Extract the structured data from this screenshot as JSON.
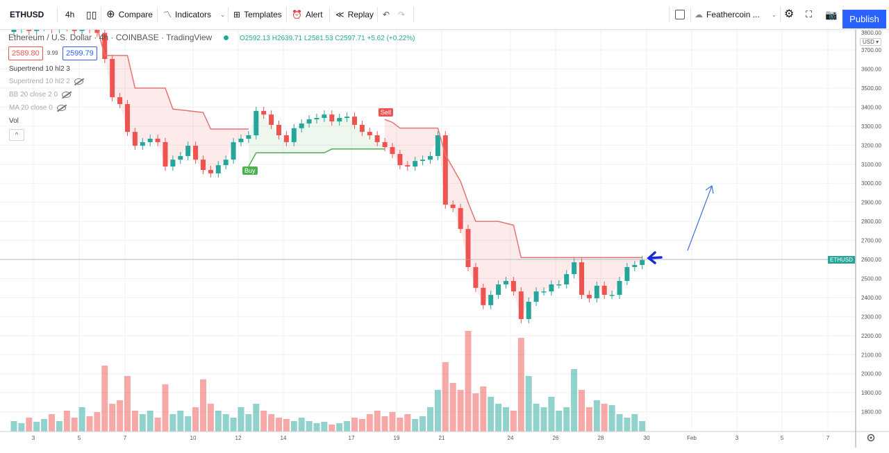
{
  "toolbar": {
    "symbol": "ETHUSD",
    "interval": "4h",
    "compare": "Compare",
    "indicators": "Indicators",
    "templates": "Templates",
    "alert": "Alert",
    "replay": "Replay",
    "layout_name": "Feathercoin ...",
    "publish": "Publish"
  },
  "legend": {
    "title": "Ethereum / U.S. Dollar · 4h · COINBASE · TradingView",
    "ohlc": "O2592.13 H2639.71 L2581.53 C2597.71 +5.62 (+0.22%)",
    "bid": "2589.80",
    "spread": "9.99",
    "ask": "2599.79",
    "indicators": [
      {
        "label": "Supertrend 10 hl2 3",
        "hidden": false
      },
      {
        "label": "Supertrend 10 hl2 2",
        "hidden": true
      },
      {
        "label": "BB 20 close 2 0",
        "hidden": true
      },
      {
        "label": "MA 20 close 0",
        "hidden": true
      },
      {
        "label": "Vol",
        "hidden": false
      }
    ],
    "collapse": "^"
  },
  "signals": {
    "buy": "Buy",
    "sell": "Sell"
  },
  "price_axis": {
    "currency": "USD ▾",
    "ticks": [
      "3800.00",
      "3700.00",
      "3600.00",
      "3500.00",
      "3400.00",
      "3300.00",
      "3200.00",
      "3100.00",
      "3000.00",
      "2900.00",
      "2800.00",
      "2700.00",
      "2600.00",
      "2500.00",
      "2400.00",
      "2300.00",
      "2200.00",
      "2100.00",
      "2000.00",
      "1900.00",
      "1800.00"
    ],
    "last_label": "ETHUSD"
  },
  "time_axis": {
    "ticks": [
      "3",
      "5",
      "7",
      "10",
      "12",
      "14",
      "17",
      "19",
      "21",
      "24",
      "26",
      "28",
      "30",
      "Feb",
      "3",
      "5",
      "7"
    ]
  },
  "colors": {
    "up": "#26a69a",
    "down": "#ef5350",
    "accent": "#2962ff",
    "annotation": "#1a2bd6"
  },
  "chart_data": {
    "type": "candlestick",
    "symbol": "ETHUSD",
    "interval": "4h",
    "last_price": 2597.71,
    "closes": [
      3810,
      3830,
      3800,
      3820,
      3840,
      3810,
      3830,
      3820,
      3800,
      3830,
      3810,
      3790,
      3653,
      3452,
      3416,
      3270,
      3197,
      3216,
      3234,
      3216,
      3088,
      3124,
      3143,
      3197,
      3124,
      3070,
      3052,
      3095,
      3124,
      3216,
      3234,
      3252,
      3380,
      3361,
      3307,
      3252,
      3216,
      3289,
      3314,
      3336,
      3343,
      3361,
      3325,
      3343,
      3350,
      3307,
      3270,
      3252,
      3216,
      3190,
      3154,
      3095,
      3088,
      3117,
      3124,
      3143,
      3252,
      2888,
      2870,
      2760,
      2560,
      2451,
      2360,
      2414,
      2469,
      2487,
      2432,
      2287,
      2378,
      2432,
      2432,
      2469,
      2469,
      2523,
      2585,
      2414,
      2396,
      2462,
      2414,
      2414,
      2487,
      2560,
      2571,
      2597
    ],
    "volume_relative": [
      15,
      12,
      20,
      14,
      18,
      25,
      15,
      30,
      20,
      35,
      22,
      28,
      95,
      40,
      45,
      80,
      30,
      25,
      30,
      20,
      68,
      25,
      30,
      22,
      35,
      75,
      40,
      30,
      25,
      20,
      35,
      25,
      40,
      30,
      25,
      20,
      18,
      15,
      20,
      15,
      12,
      14,
      10,
      12,
      15,
      20,
      18,
      25,
      30,
      22,
      28,
      20,
      25,
      18,
      22,
      35,
      60,
      100,
      70,
      60,
      145,
      55,
      65,
      50,
      40,
      35,
      30,
      135,
      80,
      40,
      35,
      50,
      30,
      35,
      90,
      60,
      35,
      45,
      40,
      38,
      25,
      20,
      25,
      15
    ],
    "supertrend": [
      {
        "direction": "down",
        "points": [
          [
            11,
            3820
          ],
          [
            12,
            3671
          ],
          [
            15,
            3671
          ],
          [
            16,
            3500
          ],
          [
            20,
            3500
          ],
          [
            21,
            3390
          ],
          [
            25,
            3372
          ],
          [
            26,
            3285
          ],
          [
            31,
            3285
          ]
        ]
      },
      {
        "direction": "up",
        "points": [
          [
            31,
            3088
          ],
          [
            32,
            3160
          ],
          [
            41,
            3160
          ],
          [
            42,
            3180
          ],
          [
            49,
            3180
          ]
        ]
      },
      {
        "direction": "down",
        "points": [
          [
            49,
            3335
          ],
          [
            50,
            3320
          ],
          [
            51,
            3290
          ],
          [
            56,
            3290
          ],
          [
            57,
            3150
          ],
          [
            58,
            3080
          ],
          [
            59,
            3010
          ],
          [
            60,
            2900
          ],
          [
            61,
            2800
          ],
          [
            64,
            2800
          ],
          [
            65,
            2790
          ],
          [
            66,
            2780
          ],
          [
            67,
            2610
          ],
          [
            83,
            2610
          ]
        ]
      }
    ],
    "signals": [
      {
        "type": "Buy",
        "index": 31
      },
      {
        "type": "Sell",
        "index": 49
      }
    ],
    "ylim": [
      1750,
      3850
    ]
  }
}
